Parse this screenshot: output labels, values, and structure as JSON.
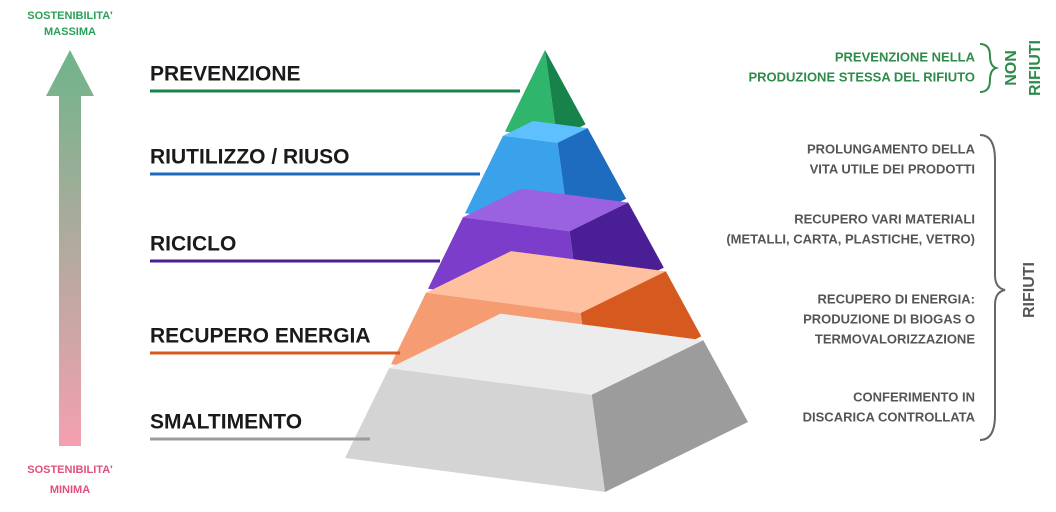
{
  "top_label": [
    "SOSTENIBILITA'",
    "MASSIMA"
  ],
  "bottom_label": [
    "SOSTENIBILITA'",
    "MINIMA"
  ],
  "levels": [
    {
      "label": "PREVENZIONE"
    },
    {
      "label": "RIUTILIZZO / RIUSO"
    },
    {
      "label": "RICICLO"
    },
    {
      "label": "RECUPERO ENERGIA"
    },
    {
      "label": "SMALTIMENTO"
    }
  ],
  "non_waste": {
    "lines": [
      "PREVENZIONE NELLA",
      "PRODUZIONE STESSA DEL RIFIUTO"
    ],
    "label": [
      "NON",
      "RIFIUTI"
    ]
  },
  "waste": {
    "items": [
      [
        "PROLUNGAMENTO DELLA",
        "VITA UTILE DEI PRODOTTI"
      ],
      [
        "RECUPERO VARI MATERIALI",
        "(METALLI, CARTA, PLASTICHE, VETRO)"
      ],
      [
        "RECUPERO DI ENERGIA:",
        "PRODUZIONE DI BIOGAS O",
        "TERMOVALORIZZAZIONE"
      ],
      [
        "CONFERIMENTO IN",
        "DISCARICA CONTROLLATA"
      ]
    ],
    "label": "RIFIUTI"
  }
}
